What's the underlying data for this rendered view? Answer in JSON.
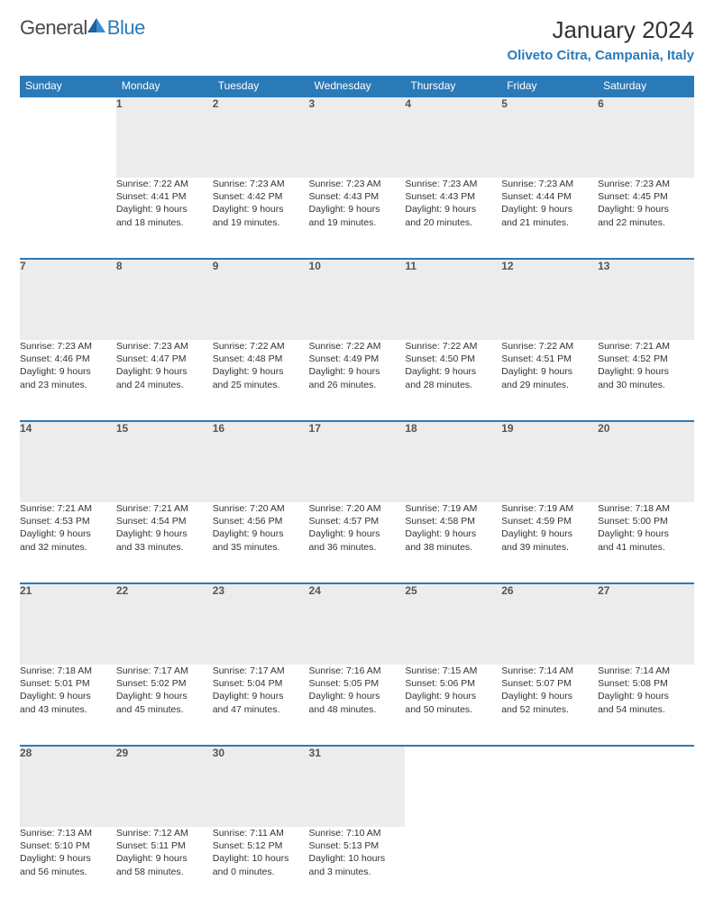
{
  "logo": {
    "text1": "General",
    "text2": "Blue"
  },
  "title": "January 2024",
  "location": "Oliveto Citra, Campania, Italy",
  "colors": {
    "header_bg": "#2a7ab8",
    "header_text": "#ffffff",
    "daynum_bg": "#ececec",
    "border": "#2a7ab8",
    "body_text": "#333333",
    "logo_gray": "#4a4a4a",
    "logo_blue": "#2a7ab8"
  },
  "weekdays": [
    "Sunday",
    "Monday",
    "Tuesday",
    "Wednesday",
    "Thursday",
    "Friday",
    "Saturday"
  ],
  "weeks": [
    [
      null,
      {
        "n": "1",
        "sr": "Sunrise: 7:22 AM",
        "ss": "Sunset: 4:41 PM",
        "d1": "Daylight: 9 hours",
        "d2": "and 18 minutes."
      },
      {
        "n": "2",
        "sr": "Sunrise: 7:23 AM",
        "ss": "Sunset: 4:42 PM",
        "d1": "Daylight: 9 hours",
        "d2": "and 19 minutes."
      },
      {
        "n": "3",
        "sr": "Sunrise: 7:23 AM",
        "ss": "Sunset: 4:43 PM",
        "d1": "Daylight: 9 hours",
        "d2": "and 19 minutes."
      },
      {
        "n": "4",
        "sr": "Sunrise: 7:23 AM",
        "ss": "Sunset: 4:43 PM",
        "d1": "Daylight: 9 hours",
        "d2": "and 20 minutes."
      },
      {
        "n": "5",
        "sr": "Sunrise: 7:23 AM",
        "ss": "Sunset: 4:44 PM",
        "d1": "Daylight: 9 hours",
        "d2": "and 21 minutes."
      },
      {
        "n": "6",
        "sr": "Sunrise: 7:23 AM",
        "ss": "Sunset: 4:45 PM",
        "d1": "Daylight: 9 hours",
        "d2": "and 22 minutes."
      }
    ],
    [
      {
        "n": "7",
        "sr": "Sunrise: 7:23 AM",
        "ss": "Sunset: 4:46 PM",
        "d1": "Daylight: 9 hours",
        "d2": "and 23 minutes."
      },
      {
        "n": "8",
        "sr": "Sunrise: 7:23 AM",
        "ss": "Sunset: 4:47 PM",
        "d1": "Daylight: 9 hours",
        "d2": "and 24 minutes."
      },
      {
        "n": "9",
        "sr": "Sunrise: 7:22 AM",
        "ss": "Sunset: 4:48 PM",
        "d1": "Daylight: 9 hours",
        "d2": "and 25 minutes."
      },
      {
        "n": "10",
        "sr": "Sunrise: 7:22 AM",
        "ss": "Sunset: 4:49 PM",
        "d1": "Daylight: 9 hours",
        "d2": "and 26 minutes."
      },
      {
        "n": "11",
        "sr": "Sunrise: 7:22 AM",
        "ss": "Sunset: 4:50 PM",
        "d1": "Daylight: 9 hours",
        "d2": "and 28 minutes."
      },
      {
        "n": "12",
        "sr": "Sunrise: 7:22 AM",
        "ss": "Sunset: 4:51 PM",
        "d1": "Daylight: 9 hours",
        "d2": "and 29 minutes."
      },
      {
        "n": "13",
        "sr": "Sunrise: 7:21 AM",
        "ss": "Sunset: 4:52 PM",
        "d1": "Daylight: 9 hours",
        "d2": "and 30 minutes."
      }
    ],
    [
      {
        "n": "14",
        "sr": "Sunrise: 7:21 AM",
        "ss": "Sunset: 4:53 PM",
        "d1": "Daylight: 9 hours",
        "d2": "and 32 minutes."
      },
      {
        "n": "15",
        "sr": "Sunrise: 7:21 AM",
        "ss": "Sunset: 4:54 PM",
        "d1": "Daylight: 9 hours",
        "d2": "and 33 minutes."
      },
      {
        "n": "16",
        "sr": "Sunrise: 7:20 AM",
        "ss": "Sunset: 4:56 PM",
        "d1": "Daylight: 9 hours",
        "d2": "and 35 minutes."
      },
      {
        "n": "17",
        "sr": "Sunrise: 7:20 AM",
        "ss": "Sunset: 4:57 PM",
        "d1": "Daylight: 9 hours",
        "d2": "and 36 minutes."
      },
      {
        "n": "18",
        "sr": "Sunrise: 7:19 AM",
        "ss": "Sunset: 4:58 PM",
        "d1": "Daylight: 9 hours",
        "d2": "and 38 minutes."
      },
      {
        "n": "19",
        "sr": "Sunrise: 7:19 AM",
        "ss": "Sunset: 4:59 PM",
        "d1": "Daylight: 9 hours",
        "d2": "and 39 minutes."
      },
      {
        "n": "20",
        "sr": "Sunrise: 7:18 AM",
        "ss": "Sunset: 5:00 PM",
        "d1": "Daylight: 9 hours",
        "d2": "and 41 minutes."
      }
    ],
    [
      {
        "n": "21",
        "sr": "Sunrise: 7:18 AM",
        "ss": "Sunset: 5:01 PM",
        "d1": "Daylight: 9 hours",
        "d2": "and 43 minutes."
      },
      {
        "n": "22",
        "sr": "Sunrise: 7:17 AM",
        "ss": "Sunset: 5:02 PM",
        "d1": "Daylight: 9 hours",
        "d2": "and 45 minutes."
      },
      {
        "n": "23",
        "sr": "Sunrise: 7:17 AM",
        "ss": "Sunset: 5:04 PM",
        "d1": "Daylight: 9 hours",
        "d2": "and 47 minutes."
      },
      {
        "n": "24",
        "sr": "Sunrise: 7:16 AM",
        "ss": "Sunset: 5:05 PM",
        "d1": "Daylight: 9 hours",
        "d2": "and 48 minutes."
      },
      {
        "n": "25",
        "sr": "Sunrise: 7:15 AM",
        "ss": "Sunset: 5:06 PM",
        "d1": "Daylight: 9 hours",
        "d2": "and 50 minutes."
      },
      {
        "n": "26",
        "sr": "Sunrise: 7:14 AM",
        "ss": "Sunset: 5:07 PM",
        "d1": "Daylight: 9 hours",
        "d2": "and 52 minutes."
      },
      {
        "n": "27",
        "sr": "Sunrise: 7:14 AM",
        "ss": "Sunset: 5:08 PM",
        "d1": "Daylight: 9 hours",
        "d2": "and 54 minutes."
      }
    ],
    [
      {
        "n": "28",
        "sr": "Sunrise: 7:13 AM",
        "ss": "Sunset: 5:10 PM",
        "d1": "Daylight: 9 hours",
        "d2": "and 56 minutes."
      },
      {
        "n": "29",
        "sr": "Sunrise: 7:12 AM",
        "ss": "Sunset: 5:11 PM",
        "d1": "Daylight: 9 hours",
        "d2": "and 58 minutes."
      },
      {
        "n": "30",
        "sr": "Sunrise: 7:11 AM",
        "ss": "Sunset: 5:12 PM",
        "d1": "Daylight: 10 hours",
        "d2": "and 0 minutes."
      },
      {
        "n": "31",
        "sr": "Sunrise: 7:10 AM",
        "ss": "Sunset: 5:13 PM",
        "d1": "Daylight: 10 hours",
        "d2": "and 3 minutes."
      },
      null,
      null,
      null
    ]
  ]
}
